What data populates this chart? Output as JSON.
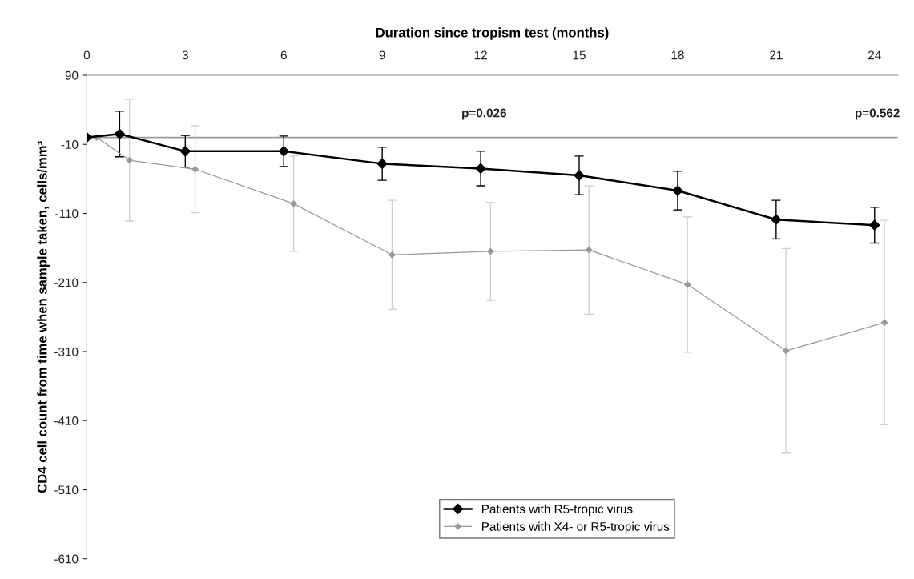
{
  "chart_data": {
    "type": "line",
    "xlabel": "Duration since tropism test (months)",
    "ylabel": "CD4 cell count from time when sample taken, cells/mm³",
    "xlim": [
      0,
      24.7
    ],
    "xticks": [
      0,
      3,
      6,
      9,
      12,
      15,
      18,
      21,
      24
    ],
    "ylim": [
      -610,
      90
    ],
    "yticks": [
      90,
      -10,
      -110,
      -210,
      -310,
      -410,
      -510,
      -610
    ],
    "series": [
      {
        "name": "Patients with R5-tropic virus",
        "color": "#000000",
        "x": [
          0,
          1,
          3,
          6,
          9,
          12,
          15,
          18,
          21,
          24
        ],
        "values": [
          0,
          5,
          -20,
          -20,
          -38,
          -45,
          -55,
          -77,
          -119,
          -127
        ],
        "errors": [
          null,
          33,
          23,
          22,
          24,
          25,
          28,
          28,
          28,
          26
        ]
      },
      {
        "name": "Patients with X4- or R5-tropic virus",
        "color": "#999999",
        "x": [
          0.3,
          1.3,
          3.3,
          6.3,
          9.3,
          12.3,
          15.3,
          18.3,
          21.3,
          24.3
        ],
        "values": [
          0,
          -33,
          -46,
          -96,
          -170,
          -165,
          -163,
          -213,
          -309,
          -268
        ],
        "errors": [
          null,
          88,
          63,
          69,
          79,
          71,
          93,
          98,
          148,
          148
        ]
      }
    ],
    "ref_lines": [
      {
        "axis": "y",
        "value": 0,
        "color": "#999999"
      }
    ],
    "annotations": [
      "p=0.026",
      "p=0.562"
    ],
    "marker": "diamond",
    "line_style": "solid",
    "grid": false,
    "legend": "bottom"
  }
}
